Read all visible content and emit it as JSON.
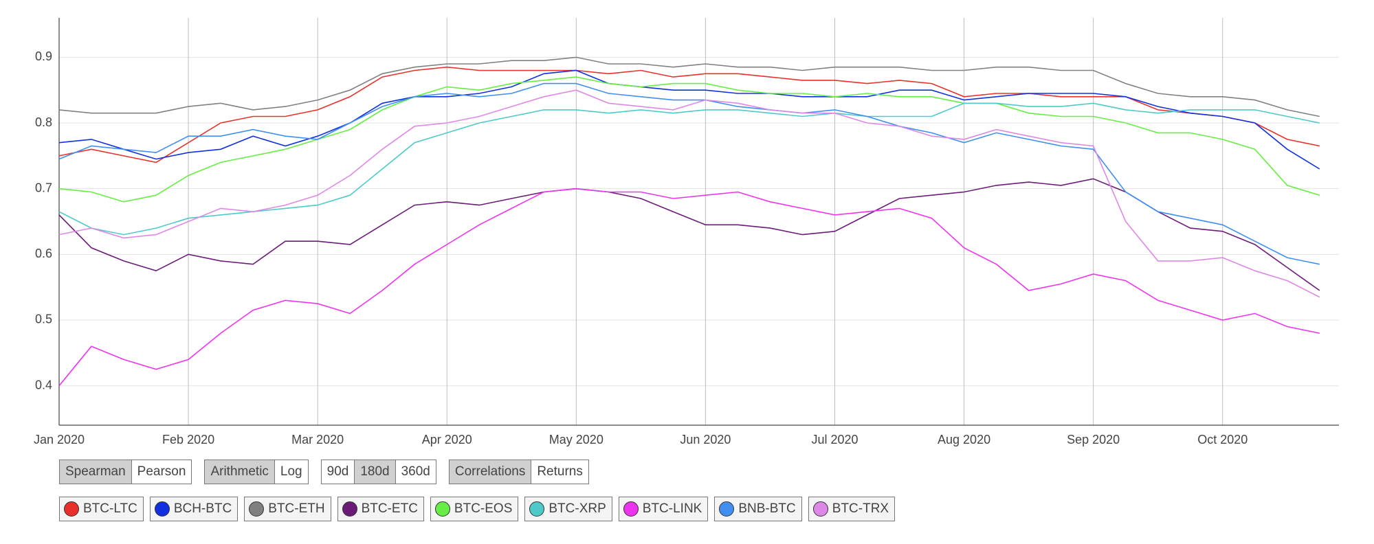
{
  "chart_data": {
    "type": "line",
    "x": [
      0,
      0.25,
      0.5,
      0.75,
      1,
      1.25,
      1.5,
      1.75,
      2,
      2.25,
      2.5,
      2.75,
      3,
      3.25,
      3.5,
      3.75,
      4,
      4.25,
      4.5,
      4.75,
      5,
      5.25,
      5.5,
      5.75,
      6,
      6.25,
      6.5,
      6.75,
      7,
      7.25,
      7.5,
      7.75,
      8,
      8.25,
      8.5,
      8.75,
      9,
      9.25,
      9.5,
      9.75
    ],
    "xlim": [
      0,
      9.9
    ],
    "xticks": [
      {
        "value": 0,
        "label": "Jan 2020"
      },
      {
        "value": 1,
        "label": "Feb 2020"
      },
      {
        "value": 2,
        "label": "Mar 2020"
      },
      {
        "value": 3,
        "label": "Apr 2020"
      },
      {
        "value": 4,
        "label": "May 2020"
      },
      {
        "value": 5,
        "label": "Jun 2020"
      },
      {
        "value": 6,
        "label": "Jul 2020"
      },
      {
        "value": 7,
        "label": "Aug 2020"
      },
      {
        "value": 8,
        "label": "Sep 2020"
      },
      {
        "value": 9,
        "label": "Oct 2020"
      }
    ],
    "ylim": [
      0.34,
      0.96
    ],
    "yticks": [
      0.4,
      0.5,
      0.6,
      0.7,
      0.8,
      0.9
    ],
    "grid": true,
    "series": [
      {
        "name": "BTC-LTC",
        "color": "#e8302a",
        "values": [
          0.75,
          0.76,
          0.75,
          0.74,
          0.77,
          0.8,
          0.81,
          0.81,
          0.82,
          0.84,
          0.87,
          0.88,
          0.885,
          0.88,
          0.88,
          0.88,
          0.88,
          0.875,
          0.88,
          0.87,
          0.875,
          0.875,
          0.87,
          0.865,
          0.865,
          0.86,
          0.865,
          0.86,
          0.84,
          0.845,
          0.845,
          0.84,
          0.84,
          0.84,
          0.82,
          0.815,
          0.81,
          0.8,
          0.775,
          0.765
        ]
      },
      {
        "name": "BCH-BTC",
        "color": "#1030e0",
        "values": [
          0.77,
          0.775,
          0.76,
          0.745,
          0.755,
          0.76,
          0.78,
          0.765,
          0.78,
          0.8,
          0.83,
          0.84,
          0.84,
          0.845,
          0.855,
          0.875,
          0.88,
          0.86,
          0.855,
          0.85,
          0.85,
          0.845,
          0.845,
          0.84,
          0.84,
          0.84,
          0.85,
          0.85,
          0.835,
          0.84,
          0.845,
          0.845,
          0.845,
          0.84,
          0.825,
          0.815,
          0.81,
          0.8,
          0.76,
          0.73
        ]
      },
      {
        "name": "BTC-ETH",
        "color": "#808080",
        "values": [
          0.82,
          0.815,
          0.815,
          0.815,
          0.825,
          0.83,
          0.82,
          0.825,
          0.835,
          0.85,
          0.875,
          0.885,
          0.89,
          0.89,
          0.895,
          0.895,
          0.9,
          0.89,
          0.89,
          0.885,
          0.89,
          0.885,
          0.885,
          0.88,
          0.885,
          0.885,
          0.885,
          0.88,
          0.88,
          0.885,
          0.885,
          0.88,
          0.88,
          0.86,
          0.845,
          0.84,
          0.84,
          0.835,
          0.82,
          0.81
        ]
      },
      {
        "name": "BTC-ETC",
        "color": "#6a1b78",
        "values": [
          0.66,
          0.61,
          0.59,
          0.575,
          0.6,
          0.59,
          0.585,
          0.62,
          0.62,
          0.615,
          0.645,
          0.675,
          0.68,
          0.675,
          0.685,
          0.695,
          0.7,
          0.695,
          0.685,
          0.665,
          0.645,
          0.645,
          0.64,
          0.63,
          0.635,
          0.66,
          0.685,
          0.69,
          0.695,
          0.705,
          0.71,
          0.705,
          0.715,
          0.695,
          0.665,
          0.64,
          0.635,
          0.615,
          0.58,
          0.545
        ]
      },
      {
        "name": "BTC-EOS",
        "color": "#66ee44",
        "values": [
          0.7,
          0.695,
          0.68,
          0.69,
          0.72,
          0.74,
          0.75,
          0.76,
          0.775,
          0.79,
          0.82,
          0.84,
          0.855,
          0.85,
          0.86,
          0.865,
          0.87,
          0.86,
          0.855,
          0.86,
          0.86,
          0.85,
          0.845,
          0.845,
          0.84,
          0.845,
          0.84,
          0.84,
          0.83,
          0.83,
          0.815,
          0.81,
          0.81,
          0.8,
          0.785,
          0.785,
          0.775,
          0.76,
          0.705,
          0.69
        ]
      },
      {
        "name": "BTC-XRP",
        "color": "#4cc9c9",
        "values": [
          0.665,
          0.64,
          0.63,
          0.64,
          0.655,
          0.66,
          0.665,
          0.67,
          0.675,
          0.69,
          0.73,
          0.77,
          0.785,
          0.8,
          0.81,
          0.82,
          0.82,
          0.815,
          0.82,
          0.815,
          0.82,
          0.82,
          0.815,
          0.81,
          0.815,
          0.81,
          0.81,
          0.81,
          0.83,
          0.83,
          0.825,
          0.825,
          0.83,
          0.82,
          0.815,
          0.82,
          0.82,
          0.82,
          0.81,
          0.8
        ]
      },
      {
        "name": "BTC-LINK",
        "color": "#ee33ee",
        "values": [
          0.4,
          0.46,
          0.44,
          0.425,
          0.44,
          0.48,
          0.515,
          0.53,
          0.525,
          0.51,
          0.545,
          0.585,
          0.615,
          0.645,
          0.67,
          0.695,
          0.7,
          0.695,
          0.695,
          0.685,
          0.69,
          0.695,
          0.68,
          0.67,
          0.66,
          0.665,
          0.67,
          0.655,
          0.61,
          0.585,
          0.545,
          0.555,
          0.57,
          0.56,
          0.53,
          0.515,
          0.5,
          0.51,
          0.49,
          0.48
        ]
      },
      {
        "name": "BNB-BTC",
        "color": "#3f8ff0",
        "values": [
          0.745,
          0.765,
          0.76,
          0.755,
          0.78,
          0.78,
          0.79,
          0.78,
          0.775,
          0.8,
          0.825,
          0.84,
          0.845,
          0.84,
          0.845,
          0.86,
          0.86,
          0.845,
          0.84,
          0.835,
          0.835,
          0.825,
          0.82,
          0.815,
          0.82,
          0.81,
          0.795,
          0.785,
          0.77,
          0.785,
          0.775,
          0.765,
          0.76,
          0.695,
          0.665,
          0.655,
          0.645,
          0.62,
          0.595,
          0.585
        ]
      },
      {
        "name": "BTC-TRX",
        "color": "#dd88e6",
        "values": [
          0.63,
          0.64,
          0.625,
          0.63,
          0.65,
          0.67,
          0.665,
          0.675,
          0.69,
          0.72,
          0.76,
          0.795,
          0.8,
          0.81,
          0.825,
          0.84,
          0.85,
          0.83,
          0.825,
          0.82,
          0.835,
          0.83,
          0.82,
          0.815,
          0.815,
          0.8,
          0.795,
          0.78,
          0.775,
          0.79,
          0.78,
          0.77,
          0.765,
          0.65,
          0.59,
          0.59,
          0.595,
          0.575,
          0.56,
          0.535
        ]
      }
    ]
  },
  "controls": [
    {
      "options": [
        "Spearman",
        "Pearson"
      ],
      "active": 0
    },
    {
      "options": [
        "Arithmetic",
        "Log"
      ],
      "active": 0
    },
    {
      "options": [
        "90d",
        "180d",
        "360d"
      ],
      "active": 1
    },
    {
      "options": [
        "Correlations",
        "Returns"
      ],
      "active": 0
    }
  ]
}
